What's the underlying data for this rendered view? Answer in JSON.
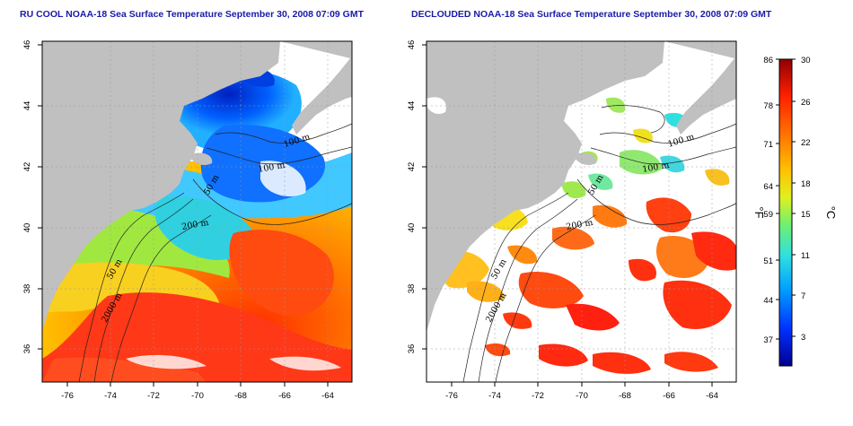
{
  "titles": {
    "left": "RU COOL NOAA-18 Sea Surface Temperature September 30, 2008 07:09 GMT",
    "right": "DECLOUDED NOAA-18 Sea Surface Temperature September 30, 2008 07:09 GMT"
  },
  "axes": {
    "lon_ticks": [
      "-76",
      "-74",
      "-72",
      "-70",
      "-68",
      "-66",
      "-64"
    ],
    "lat_ticks": [
      "36",
      "38",
      "40",
      "42",
      "44",
      "46"
    ]
  },
  "contours": {
    "labels": [
      "100 m",
      "100 m",
      "50 m",
      "200 m",
      "50 m",
      "2000 m"
    ]
  },
  "colorbar": {
    "fahrenheit_ticks": [
      "86",
      "78",
      "71",
      "64",
      "59",
      "51",
      "44",
      "37"
    ],
    "celsius_ticks": [
      "30",
      "26",
      "22",
      "18",
      "15",
      "11",
      "7",
      "3"
    ],
    "unit_left": "°F",
    "unit_right": "°C",
    "colors": [
      "#00008f",
      "#0040ff",
      "#00b0ff",
      "#30e0e0",
      "#70f070",
      "#e0f020",
      "#ffc000",
      "#ff7000",
      "#ff2000",
      "#900000"
    ]
  },
  "colors": {
    "land": "#c0c0c0",
    "clouds": "#ffffff",
    "title": "#1a1aa8"
  }
}
